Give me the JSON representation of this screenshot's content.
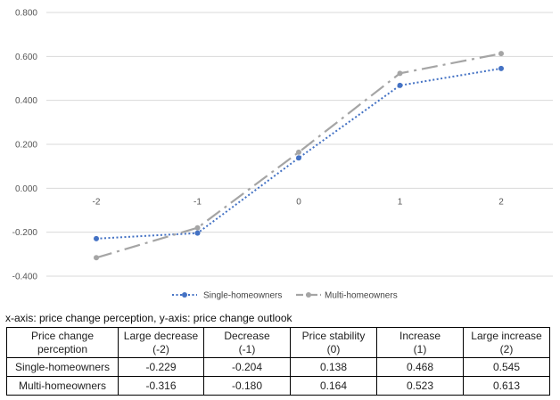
{
  "chart_data": {
    "type": "line",
    "x": [
      "-2",
      "-1",
      "0",
      "1",
      "2"
    ],
    "y_ticks": [
      "0.800",
      "0.600",
      "0.400",
      "0.200",
      "0.000",
      "-0.200",
      "-0.400"
    ],
    "ylim": [
      -0.4,
      0.8
    ],
    "grid": true,
    "legend_position": "bottom",
    "series": [
      {
        "name": "Single-homeowners",
        "values": [
          -0.229,
          -0.204,
          0.138,
          0.468,
          0.545
        ],
        "color": "#4472C4",
        "style": "dotted"
      },
      {
        "name": "Multi-homeowners",
        "values": [
          -0.316,
          -0.18,
          0.164,
          0.523,
          0.613
        ],
        "color": "#A5A5A5",
        "style": "dash-dot"
      }
    ]
  },
  "caption": "x-axis: price change perception, y-axis: price change outlook",
  "table": {
    "header": [
      [
        "Price change",
        "perception"
      ],
      [
        "Large decrease",
        "(-2)"
      ],
      [
        "Decrease",
        "(-1)"
      ],
      [
        "Price stability",
        "(0)"
      ],
      [
        "Increase",
        "(1)"
      ],
      [
        "Large increase",
        "(2)"
      ]
    ],
    "rows": [
      [
        "Single-homeowners",
        "-0.229",
        "-0.204",
        "0.138",
        "0.468",
        "0.545"
      ],
      [
        "Multi-homeowners",
        "-0.316",
        "-0.180",
        "0.164",
        "0.523",
        "0.613"
      ]
    ]
  }
}
